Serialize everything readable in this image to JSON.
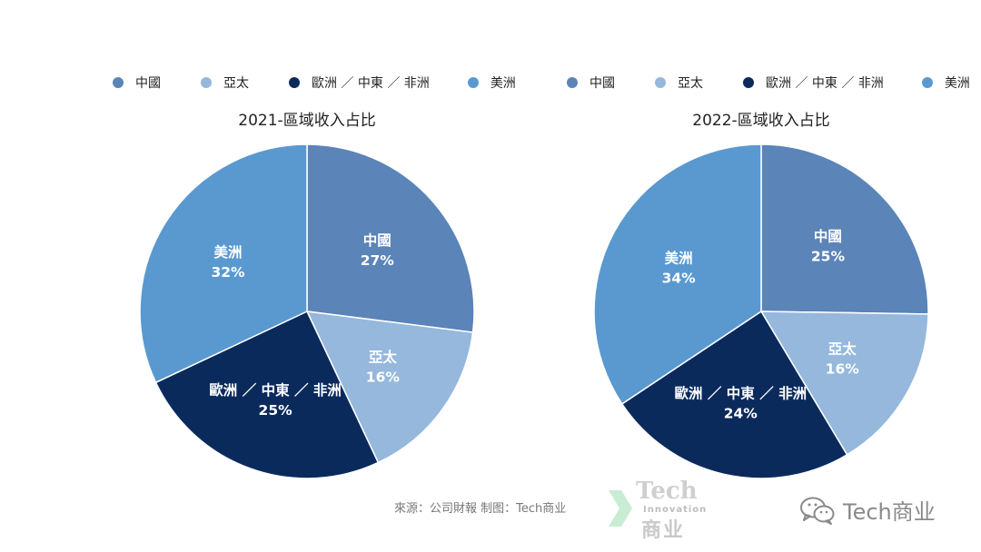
{
  "colors": {
    "china": "#5b84b8",
    "apac": "#95b8dc",
    "emea": "#0b2a5c",
    "americas": "#5a99d0"
  },
  "legend": [
    {
      "label": "中國",
      "color_key": "china"
    },
    {
      "label": "亞太",
      "color_key": "apac"
    },
    {
      "label": "歐洲 ／ 中東 ／ 非洲",
      "color_key": "emea"
    },
    {
      "label": "美洲",
      "color_key": "americas"
    }
  ],
  "chart_data": [
    {
      "type": "pie",
      "title": "2021-區域收入占比",
      "slices": [
        {
          "name": "中國",
          "value": 27,
          "label": "27%",
          "color_key": "china"
        },
        {
          "name": "亞太",
          "value": 16,
          "label": "16%",
          "color_key": "apac"
        },
        {
          "name": "歐洲 ／ 中東 ／ 非洲",
          "value": 25,
          "label": "25%",
          "color_key": "emea"
        },
        {
          "name": "美洲",
          "value": 32,
          "label": "32%",
          "color_key": "americas"
        }
      ],
      "legend_position": "top"
    },
    {
      "type": "pie",
      "title": "2022-區域收入占比",
      "slices": [
        {
          "name": "中國",
          "value": 25,
          "label": "25%",
          "color_key": "china"
        },
        {
          "name": "亞太",
          "value": 16,
          "label": "16%",
          "color_key": "apac"
        },
        {
          "name": "歐洲 ／ 中東 ／ 非洲",
          "value": 24,
          "label": "24%",
          "color_key": "emea"
        },
        {
          "name": "美洲",
          "value": 34,
          "label": "34%",
          "color_key": "americas"
        }
      ],
      "legend_position": "top"
    }
  ],
  "footer": {
    "source": "來源：公司財報 制图：Tech商业",
    "logo_tech": "Tech",
    "logo_innovation": "Innovation",
    "logo_shangye": "商业",
    "watermark": "Tech商业"
  }
}
